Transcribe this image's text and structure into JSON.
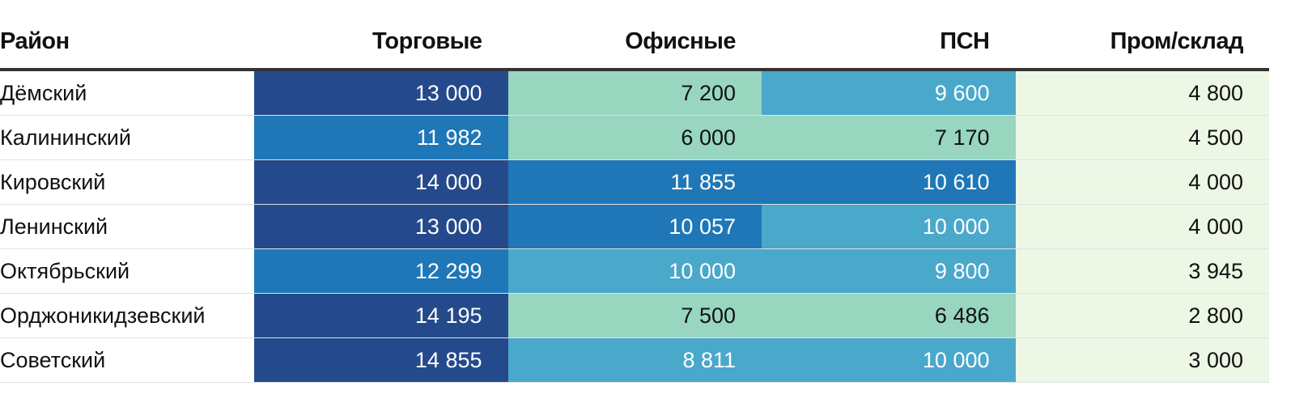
{
  "chart_data": {
    "type": "table",
    "columns": [
      "Район",
      "Торговые",
      "Офисные",
      "ПСН",
      "Пром/склад"
    ],
    "rows": [
      [
        "Дёмский",
        "13 000",
        "7 200",
        "9 600",
        "4 800"
      ],
      [
        "Калининский",
        "11 982",
        "6 000",
        "7 170",
        "4 500"
      ],
      [
        "Кировский",
        "14 000",
        "11 855",
        "10 610",
        "4 000"
      ],
      [
        "Ленинский",
        "13 000",
        "10 057",
        "10 000",
        "4 000"
      ],
      [
        "Октябрьский",
        "12 299",
        "10 000",
        "9 800",
        "3 945"
      ],
      [
        "Орджоникидзевский",
        "14 195",
        "7 500",
        "6 486",
        "2 800"
      ],
      [
        "Советский",
        "14 855",
        "8 811",
        "10 000",
        "3 000"
      ]
    ],
    "values": [
      [
        13000,
        7200,
        9600,
        4800
      ],
      [
        11982,
        6000,
        7170,
        4500
      ],
      [
        14000,
        11855,
        10610,
        4000
      ],
      [
        13000,
        10057,
        10000,
        4000
      ],
      [
        12299,
        10000,
        9800,
        3945
      ],
      [
        14195,
        7500,
        6486,
        2800
      ],
      [
        14855,
        8811,
        10000,
        3000
      ]
    ],
    "color_scale": [
      {
        "min": 0,
        "max": 5000,
        "bg": "#edf7e5",
        "text": "#111111"
      },
      {
        "min": 5000,
        "max": 7750,
        "bg": "#98d6c0",
        "text": "#111111"
      },
      {
        "min": 7750,
        "max": 10040,
        "bg": "#4aa8cb",
        "text": "#ffffff"
      },
      {
        "min": 10040,
        "max": 12500,
        "bg": "#1f77b7",
        "text": "#ffffff"
      },
      {
        "min": 12500,
        "max": 100000,
        "bg": "#254a8b",
        "text": "#ffffff"
      }
    ]
  }
}
